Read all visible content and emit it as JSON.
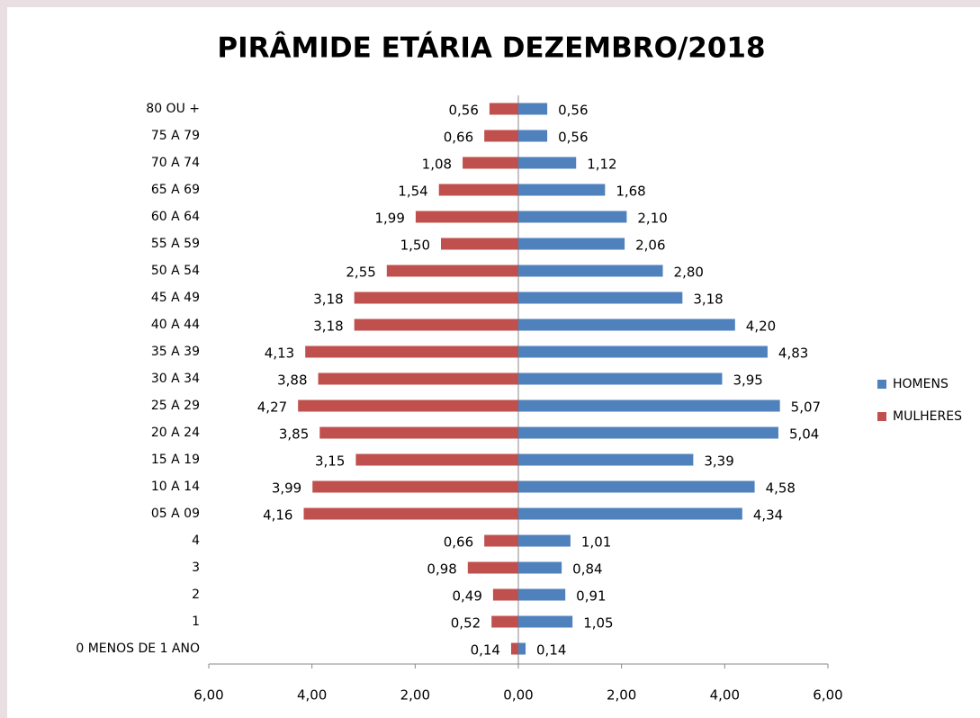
{
  "chart_data": {
    "type": "bar",
    "orientation": "horizontal",
    "stacked": "diverging",
    "title": "PIRÂMIDE ETÁRIA DEZEMBRO/2018",
    "categories": [
      "80 OU +",
      "75 A 79",
      "70 A 74",
      "65 A 69",
      "60 A 64",
      "55 A 59",
      "50 A 54",
      "45 A 49",
      "40 A 44",
      "35 A 39",
      "30 A 34",
      "25 A 29",
      "20 A 24",
      "15 A 19",
      "10 A 14",
      "05 A 09",
      "4",
      "3",
      "2",
      "1",
      "0 MENOS DE 1 ANO"
    ],
    "series": [
      {
        "name": "HOMENS",
        "color": "#4f81bd",
        "values": [
          0.56,
          0.56,
          1.12,
          1.68,
          2.1,
          2.06,
          2.8,
          3.18,
          4.2,
          4.83,
          3.95,
          5.07,
          5.04,
          3.39,
          4.58,
          4.34,
          1.01,
          0.84,
          0.91,
          1.05,
          0.14
        ],
        "value_labels": [
          "0,56",
          "0,56",
          "1,12",
          "1,68",
          "2,10",
          "2,06",
          "2,80",
          "3,18",
          "4,20",
          "4,83",
          "3,95",
          "5,07",
          "5,04",
          "3,39",
          "4,58",
          "4,34",
          "1,01",
          "0,84",
          "0,91",
          "1,05",
          "0,14"
        ]
      },
      {
        "name": "MULHERES",
        "color": "#c0504d",
        "values": [
          -0.56,
          -0.66,
          -1.08,
          -1.54,
          -1.99,
          -1.5,
          -2.55,
          -3.18,
          -3.18,
          -4.13,
          -3.88,
          -4.27,
          -3.85,
          -3.15,
          -3.99,
          -4.16,
          -0.66,
          -0.98,
          -0.49,
          -0.52,
          -0.14
        ],
        "value_labels": [
          "0,56",
          "0,66",
          "1,08",
          "1,54",
          "1,99",
          "1,50",
          "2,55",
          "3,18",
          "3,18",
          "4,13",
          "3,88",
          "4,27",
          "3,85",
          "3,15",
          "3,99",
          "4,16",
          "0,66",
          "0,98",
          "0,49",
          "0,52",
          "0,14"
        ]
      }
    ],
    "xlim": [
      -6,
      6
    ],
    "xticks": [
      {
        "value": -6,
        "label": "6,00"
      },
      {
        "value": -4,
        "label": "4,00"
      },
      {
        "value": -2,
        "label": "2,00"
      },
      {
        "value": 0,
        "label": "0,00"
      },
      {
        "value": 2,
        "label": "2,00"
      },
      {
        "value": 4,
        "label": "4,00"
      },
      {
        "value": 6,
        "label": "6,00"
      }
    ],
    "legend": "right"
  }
}
